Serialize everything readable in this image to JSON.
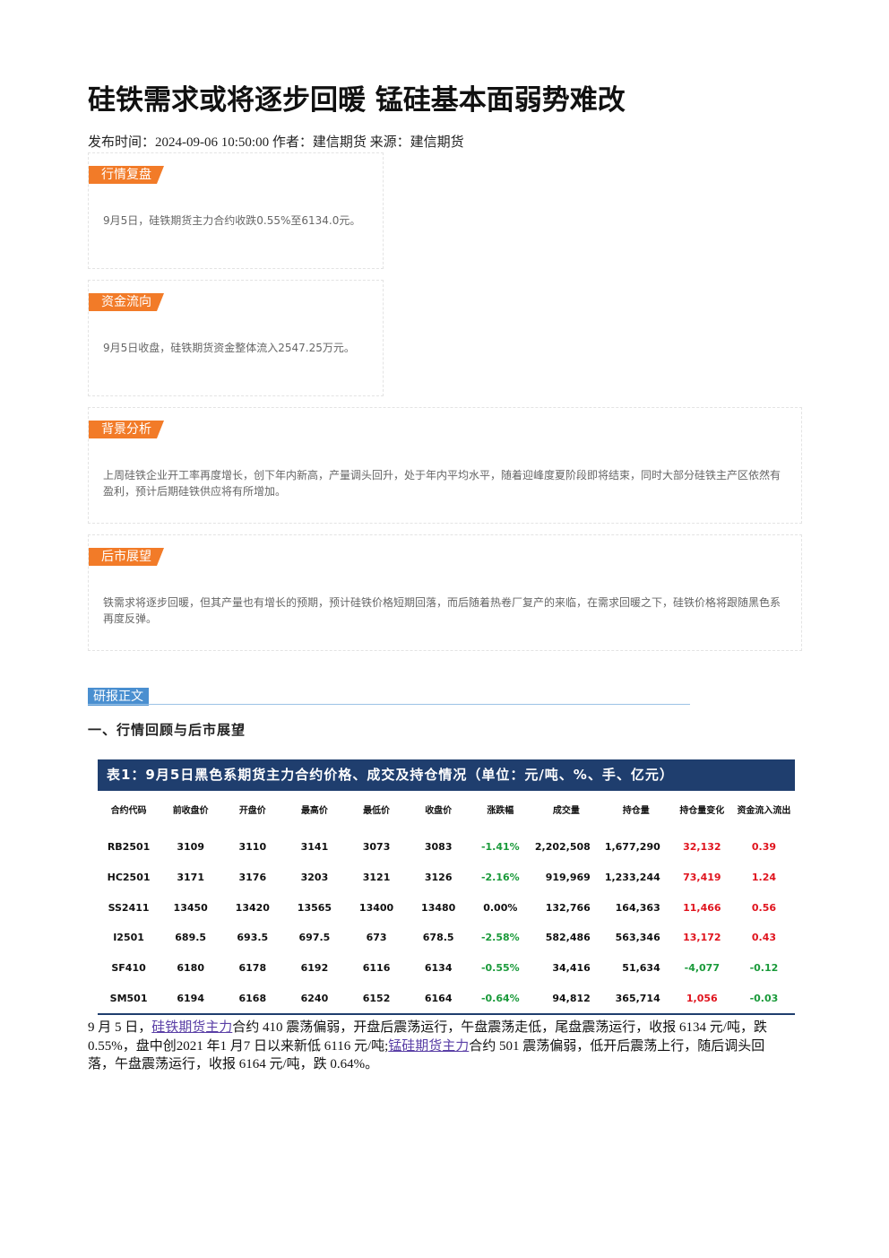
{
  "header": {
    "title": "硅铁需求或将逐步回暖 锰硅基本面弱势难改",
    "meta": "发布时间：2024-09-06 10:50:00 作者：建信期货 来源：建信期货"
  },
  "sections": [
    {
      "tag": "行情复盘",
      "text": "9月5日，硅铁期货主力合约收跌0.55%至6134.0元。"
    },
    {
      "tag": "资金流向",
      "text": "9月5日收盘，硅铁期货资金整体流入2547.25万元。"
    },
    {
      "tag": "背景分析",
      "text": "上周硅铁企业开工率再度增长，创下年内新高，产量调头回升，处于年内平均水平，随着迎峰度夏阶段即将结束，同时大部分硅铁主产区依然有盈利，预计后期硅铁供应将有所增加。"
    },
    {
      "tag": "后市展望",
      "text": "铁需求将逐步回暖，但其产量也有增长的预期，预计硅铁价格短期回落，而后随着热卷厂复产的来临，在需求回暖之下，硅铁价格将跟随黑色系再度反弹。"
    }
  ],
  "report": {
    "tag": "研报正文",
    "heading": "一、行情回顾与后市展望"
  },
  "table": {
    "caption": "表1：9月5日黑色系期货主力合约价格、成交及持仓情况（单位：元/吨、%、手、亿元）",
    "columns": [
      "合约代码",
      "前收盘价",
      "开盘价",
      "最高价",
      "最低价",
      "收盘价",
      "涨跌幅",
      "成交量",
      "持仓量",
      "持仓量变化",
      "资金流入流出"
    ],
    "rows": [
      [
        "RB2501",
        "3109",
        "3110",
        "3141",
        "3073",
        "3083",
        "-1.41%",
        "2,202,508",
        "1,677,290",
        "32,132",
        "0.39"
      ],
      [
        "HC2501",
        "3171",
        "3176",
        "3203",
        "3121",
        "3126",
        "-2.16%",
        "919,969",
        "1,233,244",
        "73,419",
        "1.24"
      ],
      [
        "SS2411",
        "13450",
        "13420",
        "13565",
        "13400",
        "13480",
        "0.00%",
        "132,766",
        "164,363",
        "11,466",
        "0.56"
      ],
      [
        "I2501",
        "689.5",
        "693.5",
        "697.5",
        "673",
        "678.5",
        "-2.58%",
        "582,486",
        "563,346",
        "13,172",
        "0.43"
      ],
      [
        "SF410",
        "6180",
        "6178",
        "6192",
        "6116",
        "6134",
        "-0.55%",
        "34,416",
        "51,634",
        "-4,077",
        "-0.12"
      ],
      [
        "SM501",
        "6194",
        "6168",
        "6240",
        "6152",
        "6164",
        "-0.64%",
        "94,812",
        "365,714",
        "1,056",
        "-0.03"
      ]
    ]
  },
  "paragraph": [
    "9 月 5 日，",
    "硅铁期货主力",
    "合约 410 震荡偏弱，开盘后震荡运行，午盘震荡走低，尾盘震荡运行，收报 6134 元/吨，跌 0.55%，盘中创2021 年1 月7 日以来新低 6116 元/吨;",
    "锰硅期货主力",
    "合约 501 震荡偏弱，低开后震荡上行，随后调头回落，午盘震荡运行，收报 6164 元/吨，跌 0.64%。"
  ]
}
